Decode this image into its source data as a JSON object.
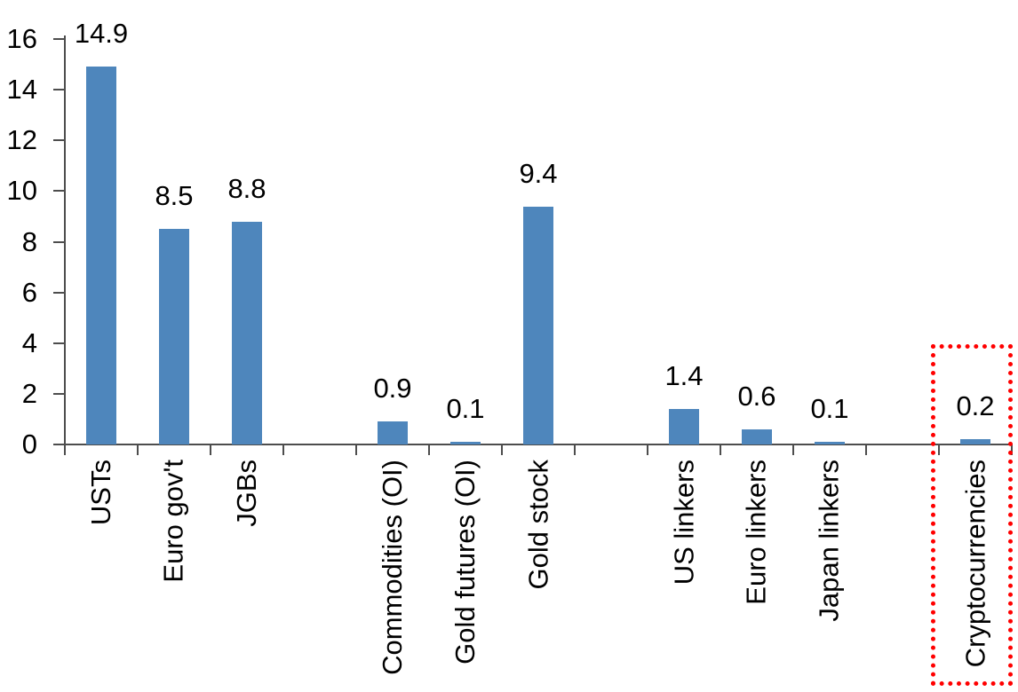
{
  "chart_data": {
    "type": "bar",
    "title": "",
    "categories": [
      "USTs",
      "Euro gov't",
      "JGBs",
      "Commodities (OI)",
      "Gold futures (OI)",
      "Gold stock",
      "US linkers",
      "Euro linkers",
      "Japan linkers",
      "Cryptocurrencies"
    ],
    "values": [
      14.9,
      8.5,
      8.8,
      0.9,
      0.1,
      9.4,
      1.4,
      0.6,
      0.1,
      0.2
    ],
    "data_labels": [
      "14.9",
      "8.5",
      "8.8",
      "0.9",
      "0.1",
      "9.4",
      "1.4",
      "0.6",
      "0.1",
      "0.2"
    ],
    "slots": [
      0,
      1,
      2,
      4,
      5,
      6,
      8,
      9,
      10,
      12
    ],
    "total_slots": 13,
    "ylim": [
      0,
      16
    ],
    "yticks": [
      0,
      2,
      4,
      6,
      8,
      10,
      12,
      14,
      16
    ],
    "grid": false,
    "legend": "none",
    "xlabel": "",
    "ylabel": "",
    "x_label_rotation": -90,
    "bar_color": "#4E86BC",
    "axis_color": "#4D4D4D",
    "text_color": "#000000",
    "highlight_box": {
      "target": "Cryptocurrencies",
      "border_color": "#FF0000",
      "border_style": "dotted"
    }
  }
}
